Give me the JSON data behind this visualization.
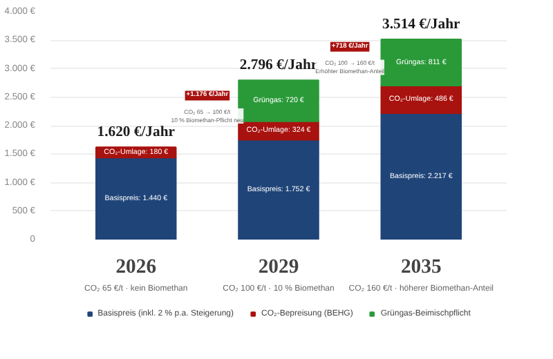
{
  "chart_data": {
    "type": "bar",
    "stacked": true,
    "categories": [
      "2026",
      "2029",
      "2035"
    ],
    "series": [
      {
        "name": "Basispreis (inkl. 2 % p.a. Steigerung)",
        "color": "#1f4478",
        "values": [
          1440,
          1752,
          2217
        ],
        "value_labels": [
          "Basispreis: 1.440 €",
          "Basispreis: 1.752 €",
          "Basispreis: 2.217 €"
        ]
      },
      {
        "name": "CO₂-Bepreisung (BEHG)",
        "color": "#a8120f",
        "values": [
          180,
          324,
          486
        ],
        "value_labels": [
          "CO₂-Umlage: 180 €",
          "CO₂-Umlage: 324 €",
          "CO₂-Umlage: 486 €"
        ]
      },
      {
        "name": "Grüngas-Beimischpflicht",
        "color": "#2a9a39",
        "values": [
          null,
          720,
          811
        ],
        "value_labels": [
          null,
          "Grüngas: 720 €",
          "Grüngas: 811 €"
        ]
      }
    ],
    "totals": [
      "1.620 €/Jahr",
      "2.796 €/Jahr",
      "3.514 €/Jahr"
    ],
    "ylim": [
      0,
      4000
    ],
    "yticks": [
      0,
      {
        "value": 500,
        "label": "500 €"
      },
      {
        "value": 1000,
        "label": "1.000 €"
      },
      {
        "value": 1500,
        "label": "1.500 €"
      },
      {
        "value": 2000,
        "label": "2.000 €"
      },
      {
        "value": 2500,
        "label": "2.500 €"
      },
      {
        "value": 3000,
        "label": "3.000 €"
      },
      {
        "value": 3500,
        "label": "3.500 €"
      },
      {
        "value": 4000,
        "label": "4.000 €"
      }
    ],
    "annotations": [
      "CO₂ 65 €/t · kein Biomethan",
      "CO₂ 100 €/t · 10 % Biomethan",
      "CO₂ 160 €/t · höherer Biomethan-Anteil",
      "+1.176 €/Jahr\nCO₂ 65 → 100 €/t\n10 % Biomethan-Pflicht neu",
      "+718 €/Jahr\nCO₂ 100 → 160 €/t\nErhöhter Biomethan-Anteil"
    ],
    "grid": "y",
    "legend": "bottom"
  }
}
